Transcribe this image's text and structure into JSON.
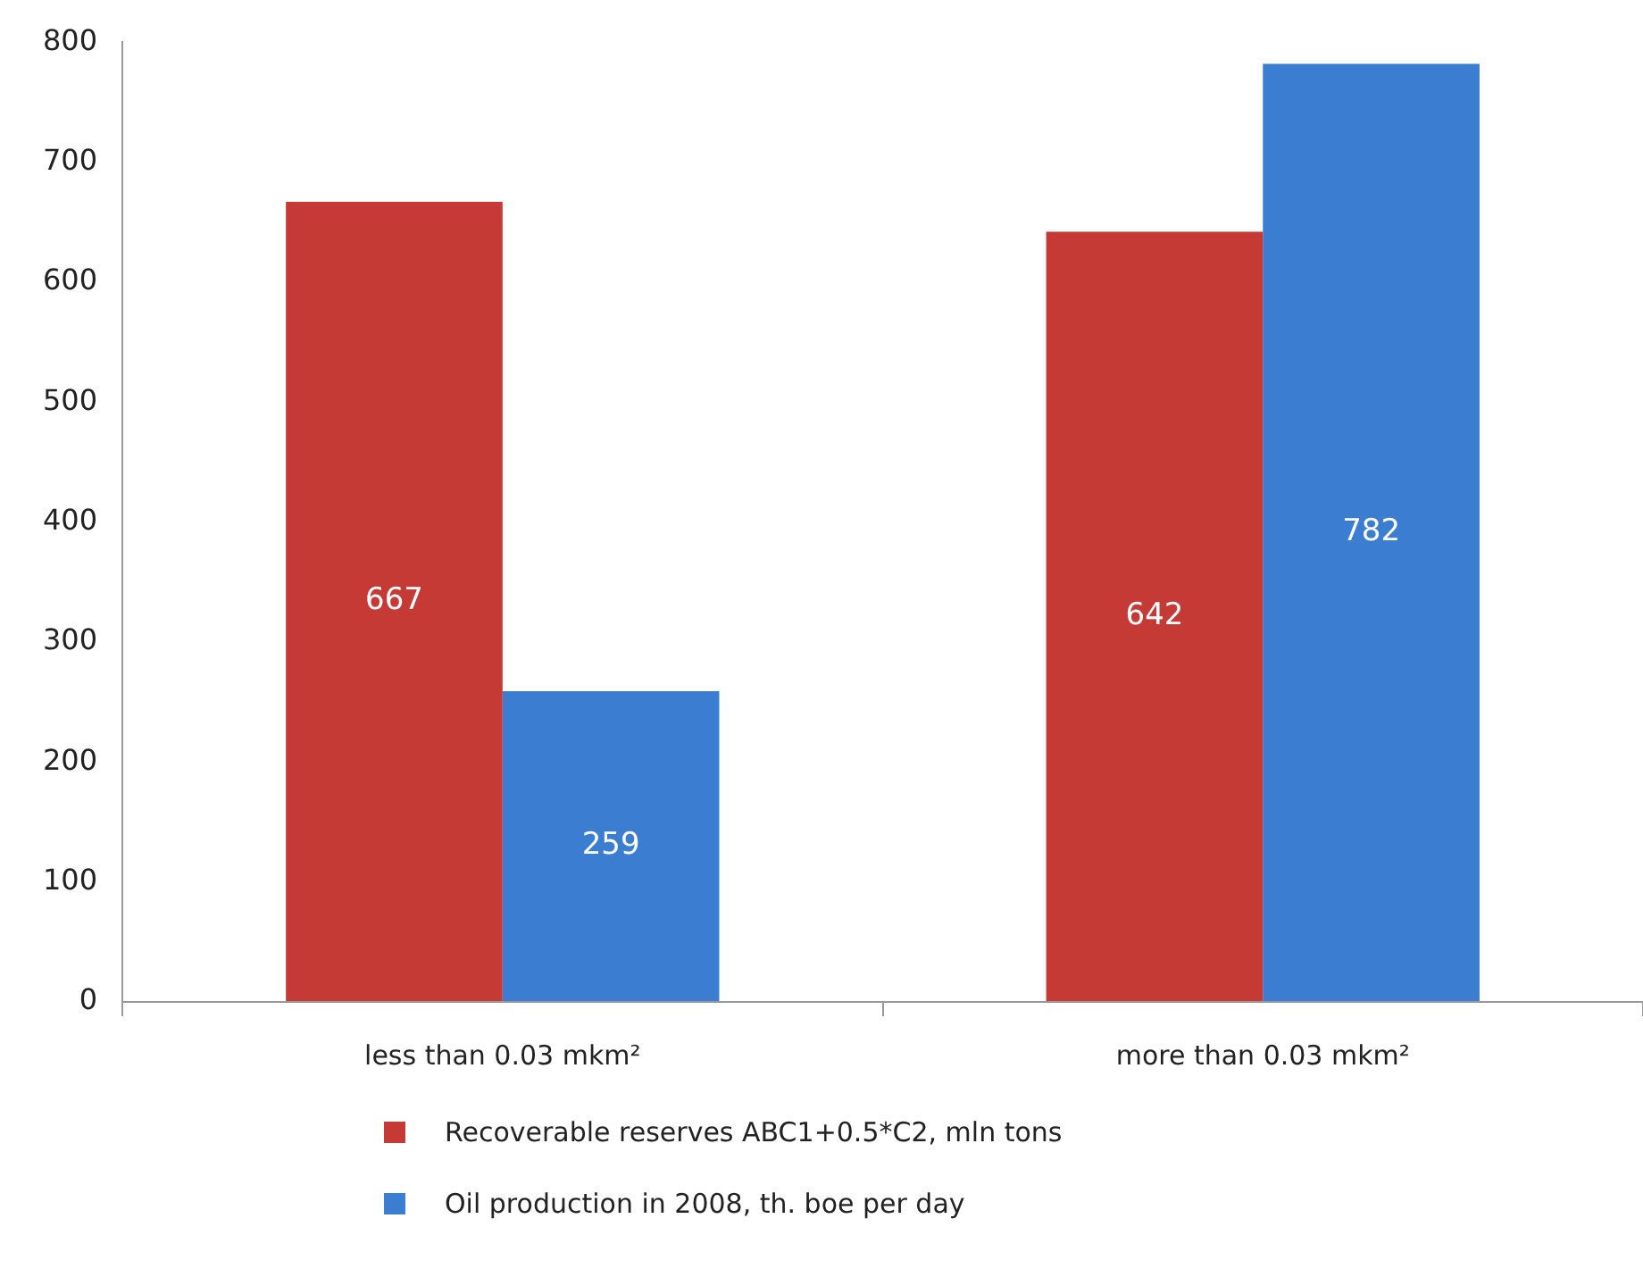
{
  "chart_data": {
    "type": "bar",
    "categories": [
      "less than 0.03 mkm²",
      "more than 0.03 mkm²"
    ],
    "series": [
      {
        "name": "Recoverable reserves ABC1+0.5*C2, mln tons",
        "color": "#c63a36",
        "values": [
          667,
          642
        ]
      },
      {
        "name": "Oil production in 2008, th. boe per day",
        "color": "#3b7dd0",
        "values": [
          259,
          782
        ]
      }
    ],
    "ylim": [
      0,
      800
    ],
    "yticks": [
      0,
      100,
      200,
      300,
      400,
      500,
      600,
      700,
      800
    ],
    "grid": false,
    "data_labels": true,
    "legend": "bottom"
  }
}
